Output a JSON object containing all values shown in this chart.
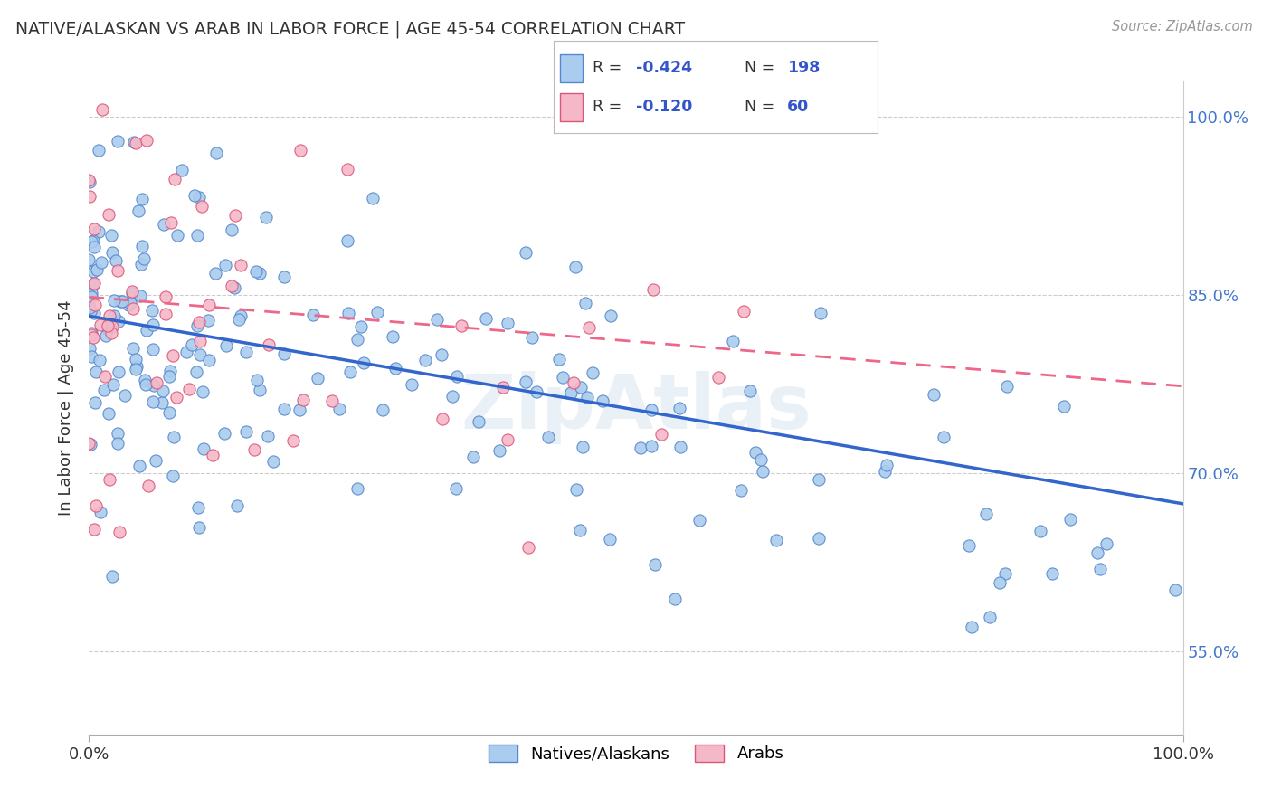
{
  "title": "NATIVE/ALASKAN VS ARAB IN LABOR FORCE | AGE 45-54 CORRELATION CHART",
  "source": "Source: ZipAtlas.com",
  "ylabel": "In Labor Force | Age 45-54",
  "xlim": [
    0.0,
    1.0
  ],
  "ylim": [
    0.48,
    1.03
  ],
  "ytick_labels": [
    "55.0%",
    "70.0%",
    "85.0%",
    "100.0%"
  ],
  "ytick_positions": [
    0.55,
    0.7,
    0.85,
    1.0
  ],
  "blue_scatter_color": "#aaccee",
  "pink_scatter_color": "#f4b8c8",
  "blue_line_color": "#3366cc",
  "pink_line_color": "#ee6688",
  "blue_edge_color": "#5588cc",
  "pink_edge_color": "#dd5577",
  "R_blue": -0.424,
  "R_pink": -0.12,
  "N_blue": 198,
  "N_pink": 60,
  "blue_intercept": 0.832,
  "blue_slope": -0.158,
  "pink_intercept": 0.848,
  "pink_slope": -0.075,
  "watermark": "ZipAtlas",
  "background_color": "#ffffff",
  "grid_color": "#cccccc",
  "title_color": "#333333",
  "label_color": "#333333",
  "legend_R_color": "#3355cc",
  "legend_N_color": "#3355cc",
  "tick_label_color": "#4477cc"
}
